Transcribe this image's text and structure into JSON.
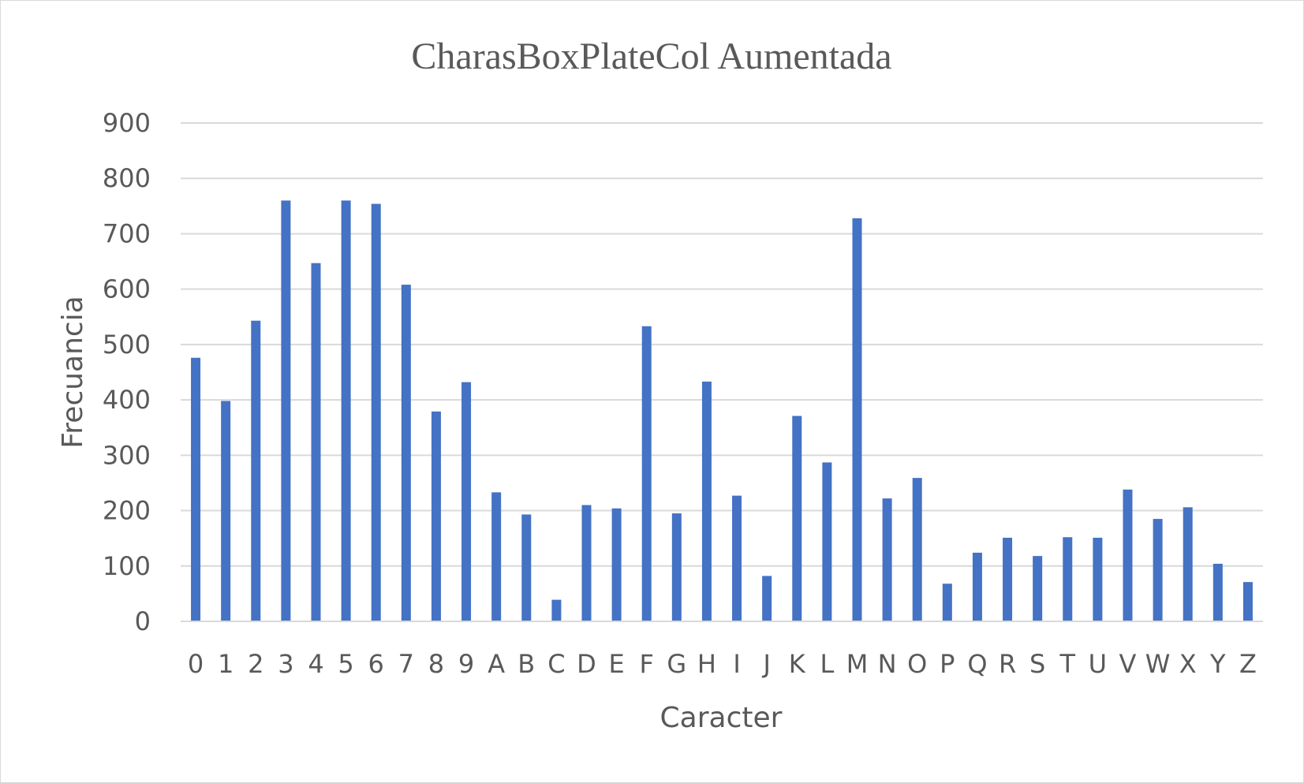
{
  "chart_data": {
    "type": "bar",
    "title": "CharasBoxPlateCol Aumentada",
    "xlabel": "Caracter",
    "ylabel": "Frecuancia",
    "categories": [
      "0",
      "1",
      "2",
      "3",
      "4",
      "5",
      "6",
      "7",
      "8",
      "9",
      "A",
      "B",
      "C",
      "D",
      "E",
      "F",
      "G",
      "H",
      "I",
      "J",
      "K",
      "L",
      "M",
      "N",
      "O",
      "P",
      "Q",
      "R",
      "S",
      "T",
      "U",
      "V",
      "W",
      "X",
      "Y",
      "Z"
    ],
    "values": [
      476,
      398,
      543,
      760,
      647,
      760,
      754,
      608,
      379,
      432,
      233,
      193,
      39,
      210,
      204,
      533,
      195,
      433,
      227,
      82,
      371,
      287,
      728,
      222,
      259,
      68,
      124,
      151,
      118,
      152,
      151,
      238,
      185,
      206,
      104,
      71
    ],
    "ylim": [
      0,
      900
    ],
    "yticks": [
      0,
      100,
      200,
      300,
      400,
      500,
      600,
      700,
      800,
      900
    ],
    "grid": true,
    "legend": "none",
    "colors": {
      "bar": "#4472C4",
      "grid": "#d9d9d9",
      "text": "#595959",
      "border": "#d9d9d9"
    }
  }
}
